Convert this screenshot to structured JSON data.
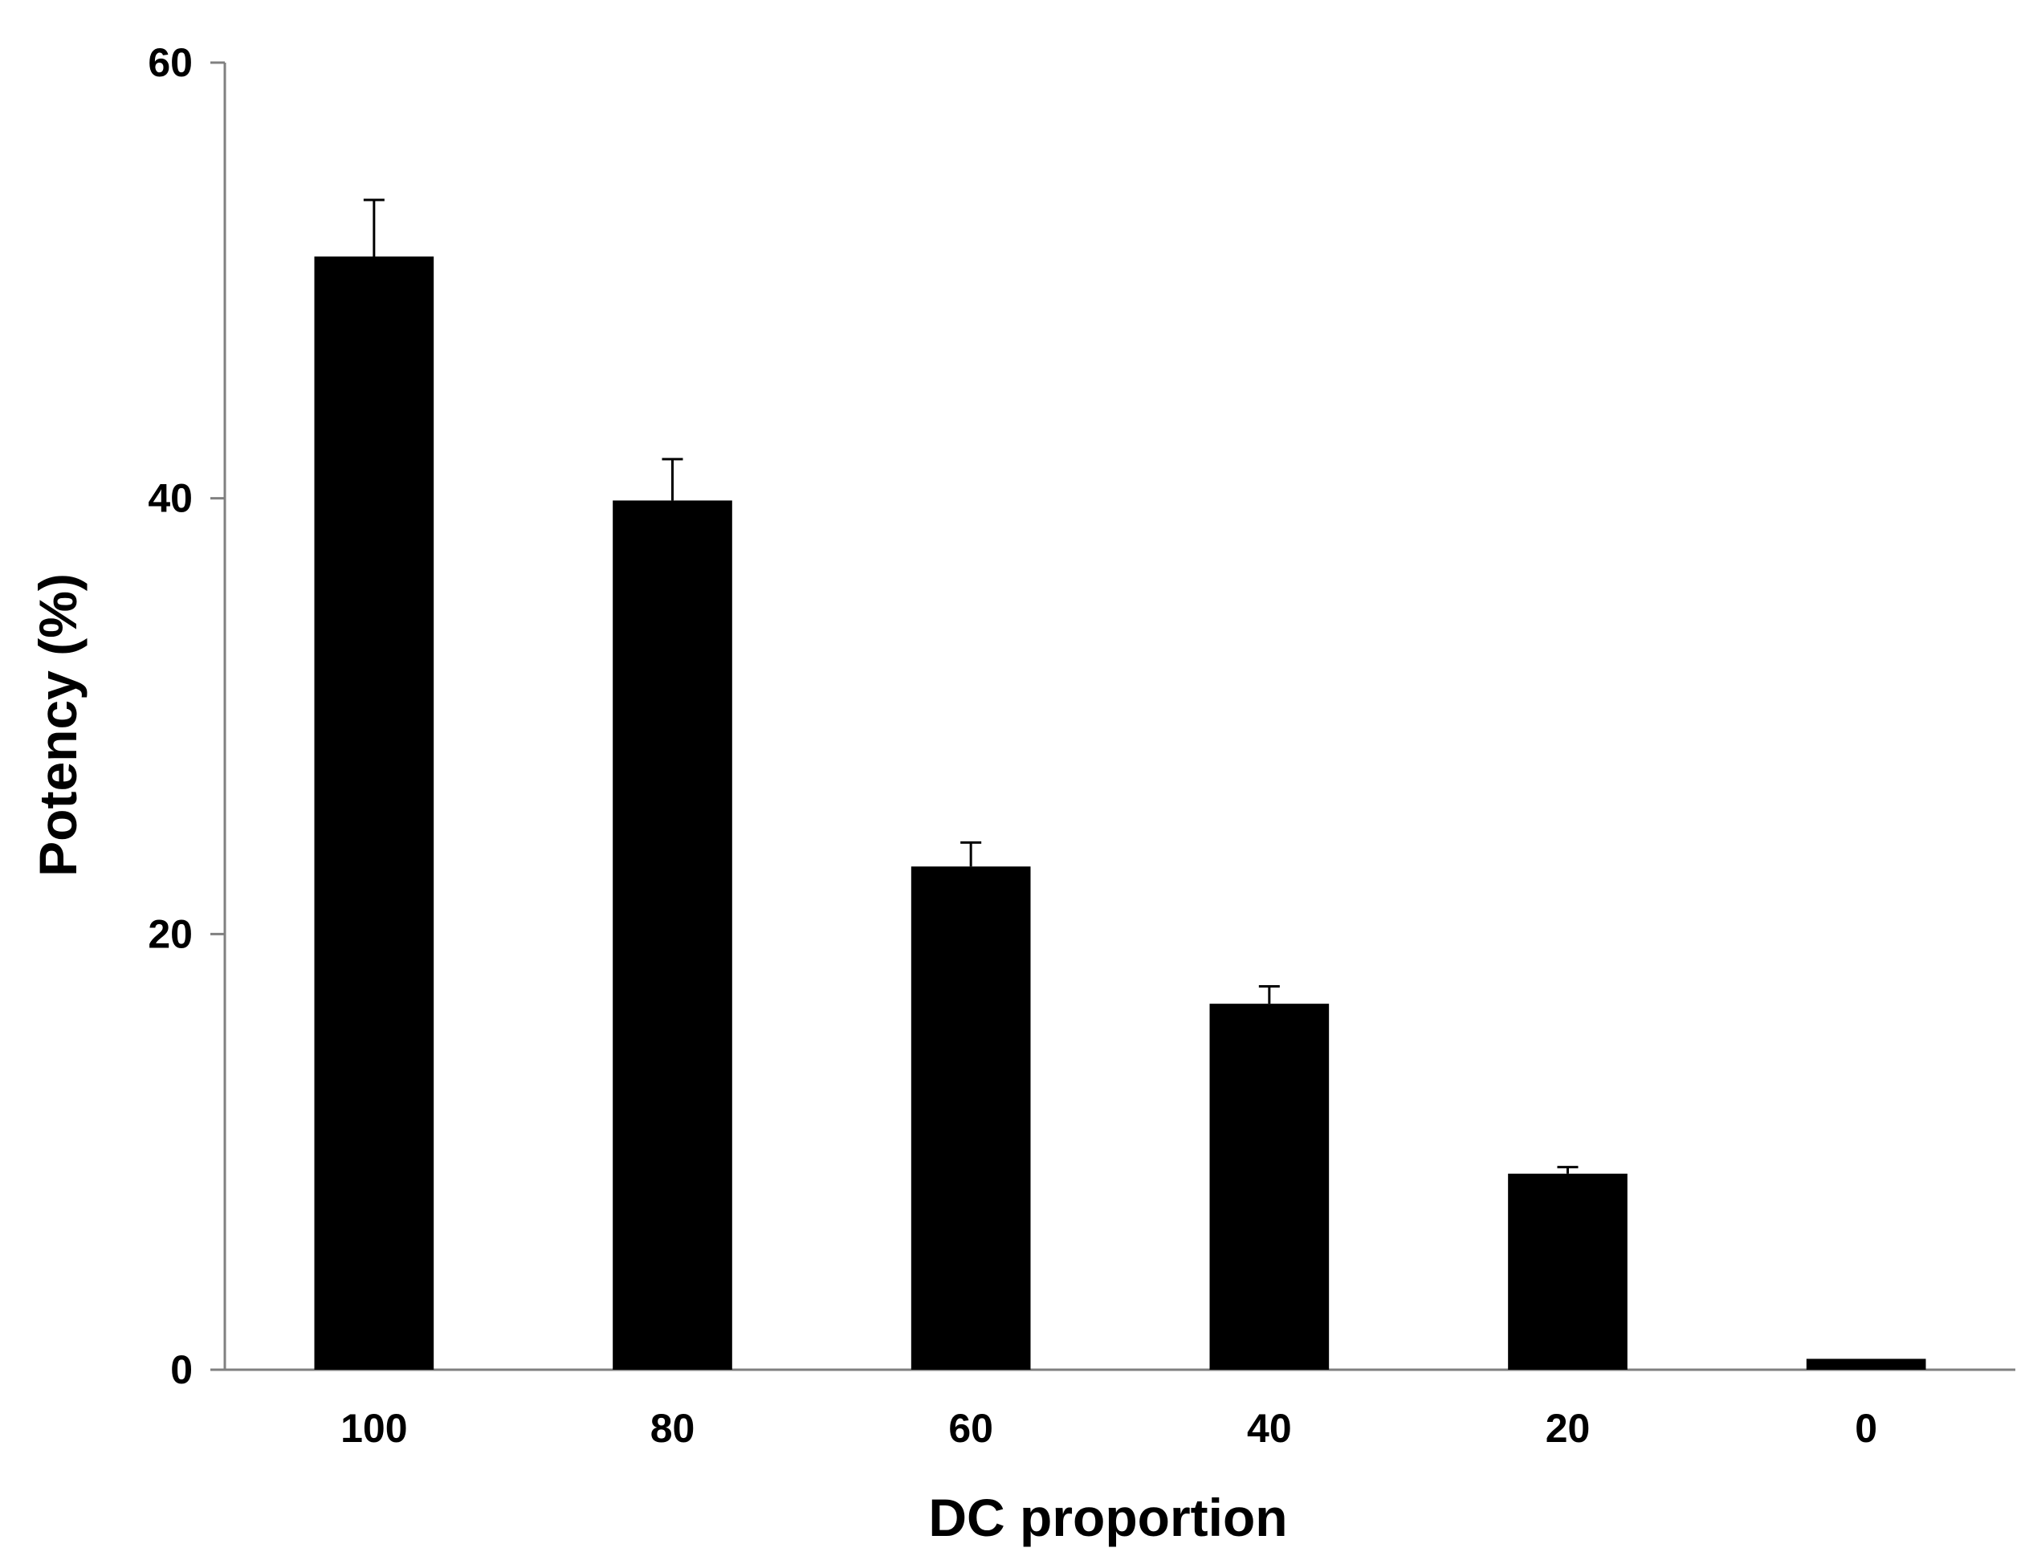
{
  "chart_data": {
    "type": "bar",
    "title": "",
    "xlabel": "DC proportion",
    "ylabel": "Potency (%)",
    "categories": [
      "100",
      "80",
      "60",
      "40",
      "20",
      "0"
    ],
    "values": [
      51.1,
      39.9,
      23.1,
      16.8,
      9.0,
      0.5
    ],
    "error_plus": [
      2.6,
      1.9,
      1.1,
      0.8,
      0.3,
      0
    ],
    "ylim": [
      0,
      60
    ],
    "yticks": [
      "0",
      "20",
      "40",
      "60"
    ],
    "grid": false,
    "legend": "none",
    "colors": {
      "bar": "#000000",
      "axis": "#808080",
      "error_bar": "#000000"
    }
  }
}
